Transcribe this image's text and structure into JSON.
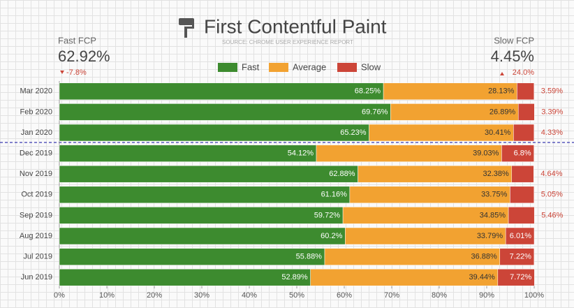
{
  "chart_data": {
    "type": "stacked-bar-horizontal",
    "title": "First Contentful Paint",
    "subtitle": "SOURCE: CHROME USER EXPERIENCE REPORT",
    "left_summary": {
      "label": "Fast FCP",
      "value": "62.92%",
      "change": "-7.8%"
    },
    "right_summary": {
      "label": "Slow FCP",
      "value": "4.45%",
      "change": "24.0%"
    },
    "categories": [
      "Mar 2020",
      "Feb 2020",
      "Jan 2020",
      "Dec 2019",
      "Nov 2019",
      "Oct 2019",
      "Sep 2019",
      "Aug 2019",
      "Jul 2019",
      "Jun 2019"
    ],
    "series": [
      {
        "name": "Fast",
        "color": "#3d8b2f",
        "values": [
          68.25,
          69.76,
          65.23,
          54.12,
          62.88,
          61.16,
          59.72,
          60.2,
          55.88,
          52.89
        ],
        "value_labels": [
          "68.25%",
          "69.76%",
          "65.23%",
          "54.12%",
          "62.88%",
          "61.16%",
          "59.72%",
          "60.2%",
          "55.88%",
          "52.89%"
        ]
      },
      {
        "name": "Average",
        "color": "#f2a231",
        "values": [
          28.13,
          26.89,
          30.41,
          39.03,
          32.38,
          33.75,
          34.85,
          33.79,
          36.88,
          39.44
        ],
        "value_labels": [
          "28.13%",
          "26.89%",
          "30.41%",
          "39.03%",
          "32.38%",
          "33.75%",
          "34.85%",
          "33.79%",
          "36.88%",
          "39.44%"
        ]
      },
      {
        "name": "Slow",
        "color": "#cc4538",
        "values": [
          3.59,
          3.39,
          4.33,
          6.8,
          4.64,
          5.05,
          5.46,
          6.01,
          7.22,
          7.72
        ],
        "value_labels": [
          "3.59%",
          "3.39%",
          "4.33%",
          "6.8%",
          "4.64%",
          "5.05%",
          "5.46%",
          "6.01%",
          "7.22%",
          "7.72%"
        ]
      }
    ],
    "xlim": [
      0,
      100
    ],
    "xticks": [
      {
        "value": 0,
        "label": "0%"
      },
      {
        "value": 10,
        "label": "10%"
      },
      {
        "value": 20,
        "label": "20%"
      },
      {
        "value": 30,
        "label": "30%"
      },
      {
        "value": 40,
        "label": "40%"
      },
      {
        "value": 50,
        "label": "50%"
      },
      {
        "value": 60,
        "label": "60%"
      },
      {
        "value": 70,
        "label": "70%"
      },
      {
        "value": 80,
        "label": "80%"
      },
      {
        "value": 90,
        "label": "90%"
      },
      {
        "value": 100,
        "label": "100%"
      }
    ]
  }
}
